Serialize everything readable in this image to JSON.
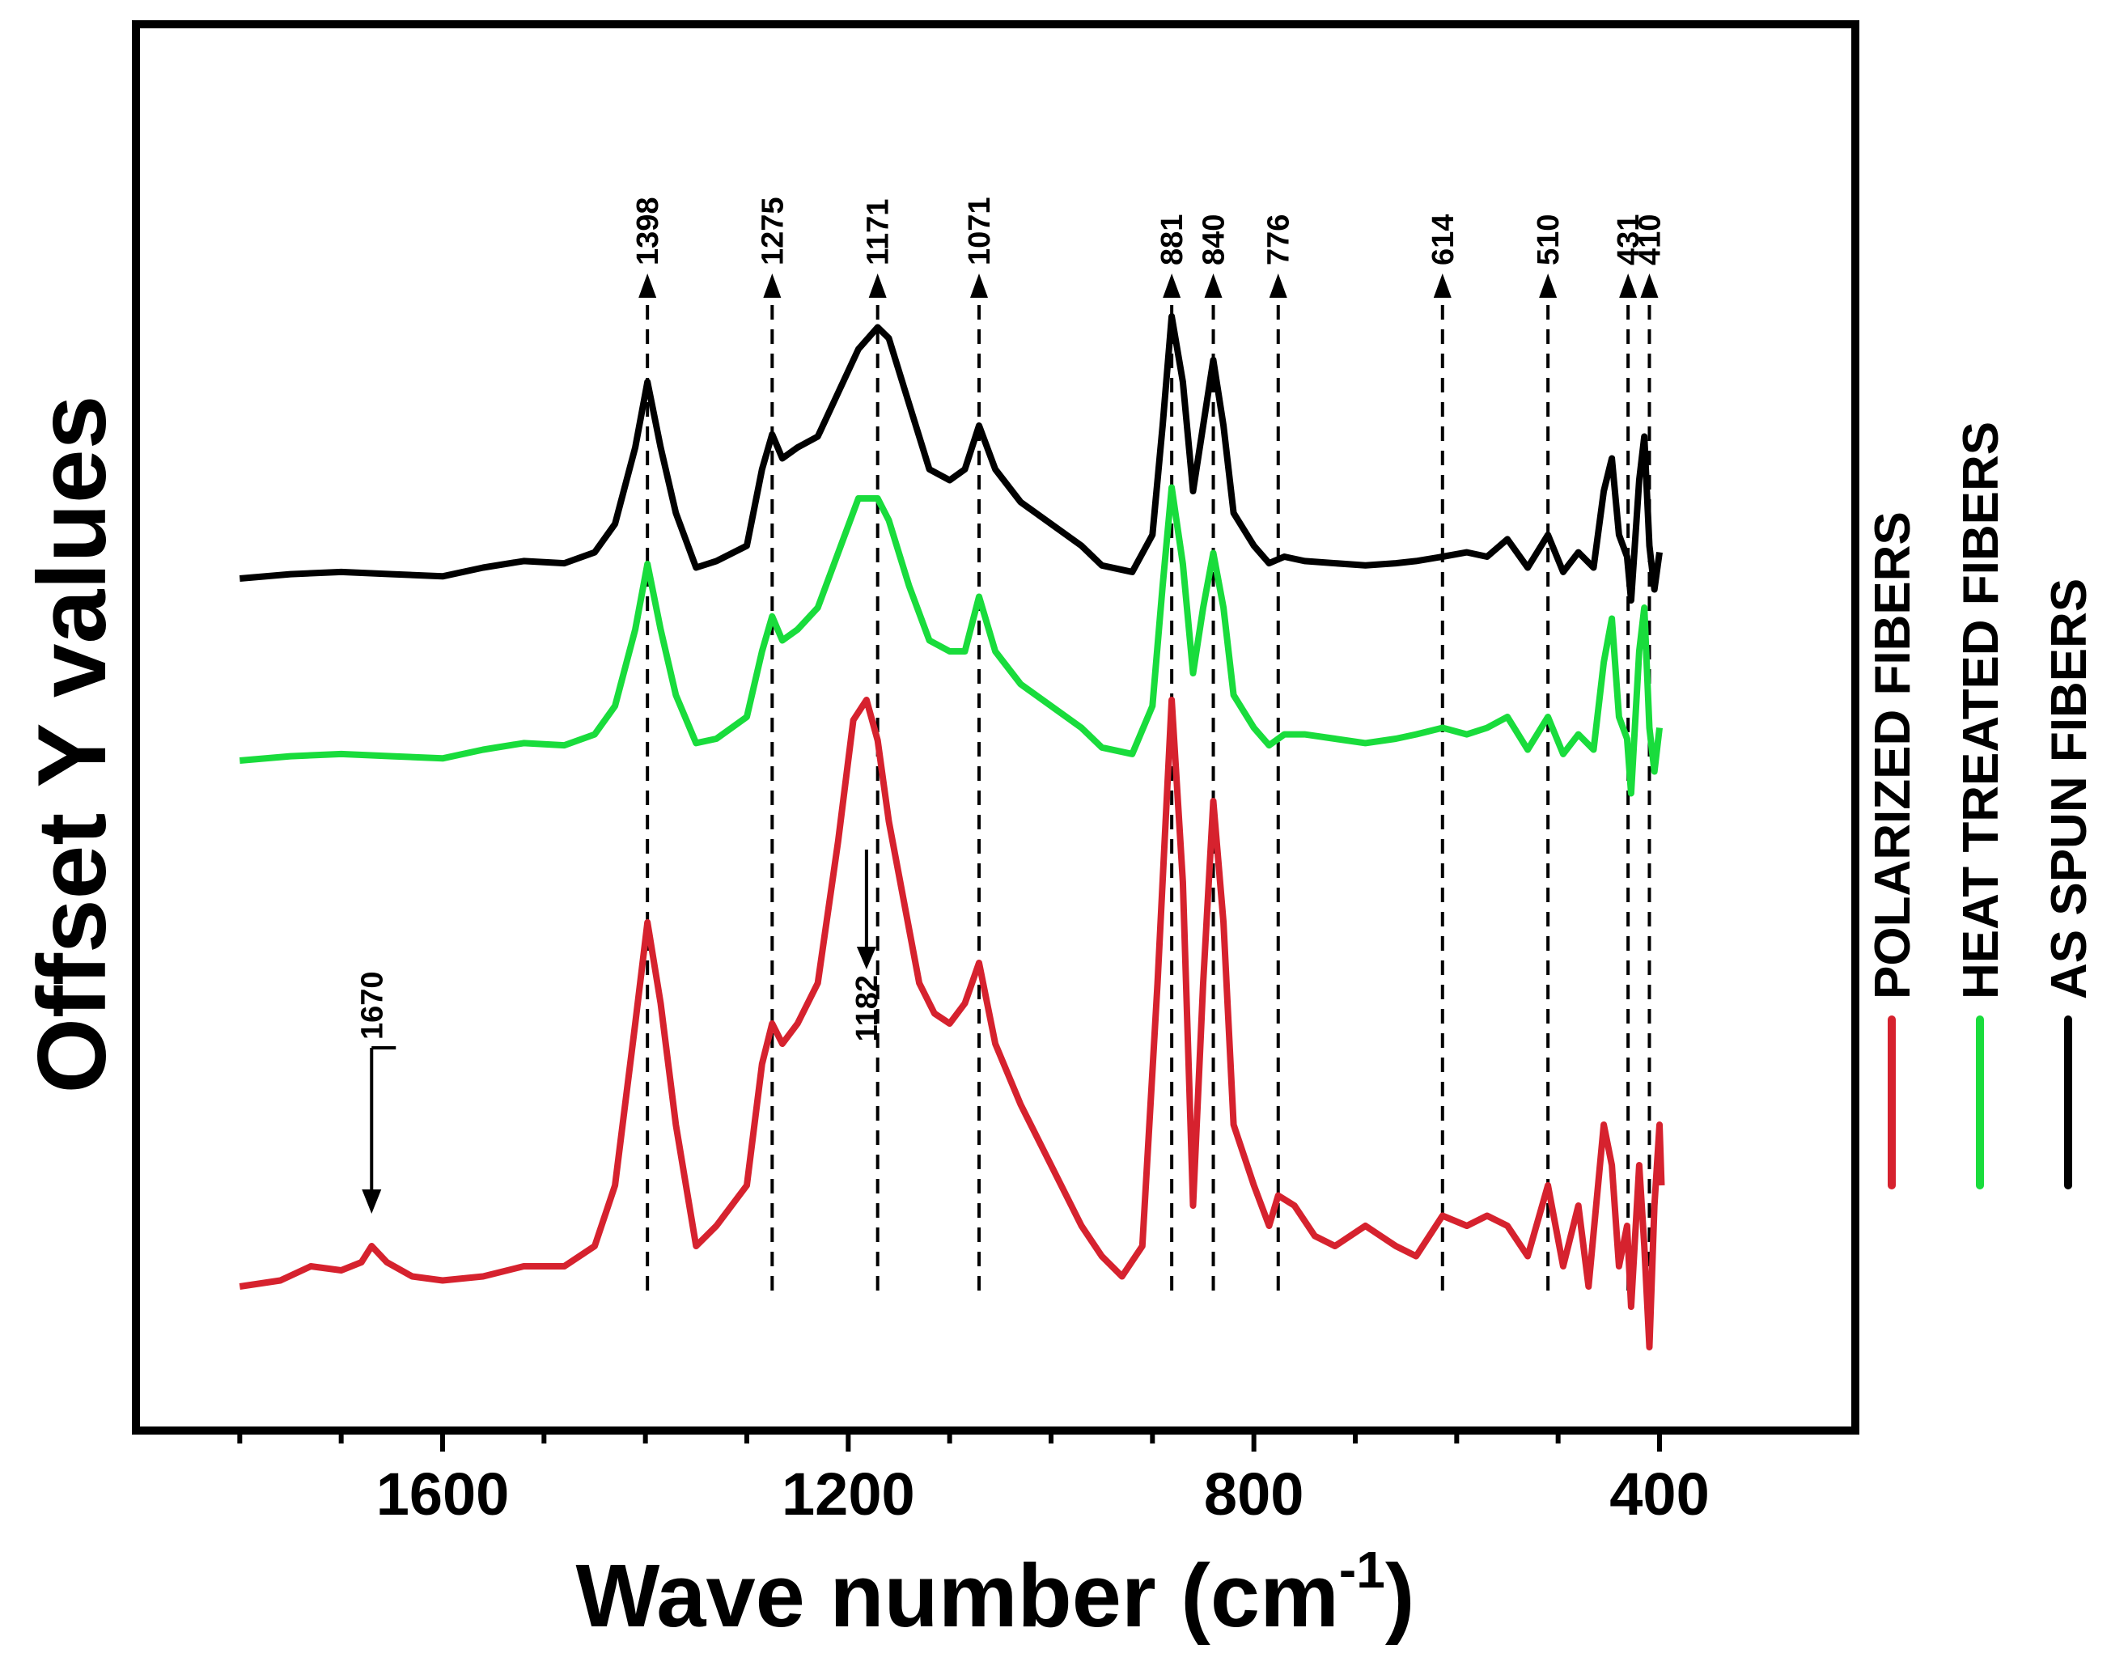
{
  "chart_data": {
    "type": "line",
    "xlabel": "Wave number (cm",
    "xlabel_sup": "-1",
    "xlabel_close": ")",
    "ylabel": "Offset Y values",
    "xlim": [
      1880,
      230
    ],
    "x_ticks": [
      1600,
      1200,
      800,
      400
    ],
    "x_tick_labels": [
      "1600",
      "1200",
      "800",
      "400"
    ],
    "legend": {
      "placement": "right",
      "entries": [
        {
          "label": "POLARIZED FIBERS",
          "color": "#d6222e"
        },
        {
          "label": "HEAT TREATED FIBERS",
          "color": "#19dc3c"
        },
        {
          "label": "AS SPUN FIBERS",
          "color": "#000000"
        }
      ]
    },
    "peak_markers": [
      {
        "label": "1398",
        "x": 1398
      },
      {
        "label": "1275",
        "x": 1275
      },
      {
        "label": "1171",
        "x": 1171
      },
      {
        "label": "1071",
        "x": 1071
      },
      {
        "label": "881",
        "x": 881
      },
      {
        "label": "840",
        "x": 840
      },
      {
        "label": "776",
        "x": 776
      },
      {
        "label": "614",
        "x": 614
      },
      {
        "label": "510",
        "x": 510
      },
      {
        "label": "431",
        "x": 431
      },
      {
        "label": "410",
        "x": 410
      }
    ],
    "annotations": [
      {
        "label": "1670",
        "x": 1670,
        "series": "POLARIZED FIBERS"
      },
      {
        "label": "1182",
        "x": 1182,
        "series": "POLARIZED FIBERS"
      }
    ],
    "series": [
      {
        "name": "AS SPUN FIBERS",
        "color": "#000000",
        "offset": 0.0,
        "points": [
          [
            1800,
            0.0
          ],
          [
            1750,
            0.02
          ],
          [
            1700,
            0.03
          ],
          [
            1650,
            0.02
          ],
          [
            1600,
            0.01
          ],
          [
            1560,
            0.05
          ],
          [
            1520,
            0.08
          ],
          [
            1480,
            0.07
          ],
          [
            1450,
            0.12
          ],
          [
            1430,
            0.25
          ],
          [
            1410,
            0.6
          ],
          [
            1398,
            0.9
          ],
          [
            1385,
            0.6
          ],
          [
            1370,
            0.3
          ],
          [
            1350,
            0.05
          ],
          [
            1330,
            0.08
          ],
          [
            1300,
            0.15
          ],
          [
            1285,
            0.5
          ],
          [
            1275,
            0.66
          ],
          [
            1265,
            0.55
          ],
          [
            1250,
            0.6
          ],
          [
            1230,
            0.65
          ],
          [
            1210,
            0.85
          ],
          [
            1190,
            1.05
          ],
          [
            1171,
            1.15
          ],
          [
            1160,
            1.1
          ],
          [
            1140,
            0.8
          ],
          [
            1120,
            0.5
          ],
          [
            1100,
            0.45
          ],
          [
            1085,
            0.5
          ],
          [
            1071,
            0.7
          ],
          [
            1055,
            0.5
          ],
          [
            1030,
            0.35
          ],
          [
            1000,
            0.25
          ],
          [
            970,
            0.15
          ],
          [
            950,
            0.06
          ],
          [
            920,
            0.03
          ],
          [
            900,
            0.2
          ],
          [
            890,
            0.7
          ],
          [
            881,
            1.2
          ],
          [
            870,
            0.9
          ],
          [
            860,
            0.4
          ],
          [
            850,
            0.7
          ],
          [
            840,
            1.0
          ],
          [
            830,
            0.7
          ],
          [
            820,
            0.3
          ],
          [
            800,
            0.15
          ],
          [
            785,
            0.07
          ],
          [
            770,
            0.1
          ],
          [
            750,
            0.08
          ],
          [
            720,
            0.07
          ],
          [
            690,
            0.06
          ],
          [
            660,
            0.07
          ],
          [
            640,
            0.08
          ],
          [
            614,
            0.1
          ],
          [
            590,
            0.12
          ],
          [
            570,
            0.1
          ],
          [
            550,
            0.18
          ],
          [
            530,
            0.05
          ],
          [
            510,
            0.2
          ],
          [
            495,
            0.03
          ],
          [
            480,
            0.12
          ],
          [
            465,
            0.05
          ],
          [
            455,
            0.4
          ],
          [
            447,
            0.55
          ],
          [
            440,
            0.2
          ],
          [
            432,
            0.1
          ],
          [
            428,
            -0.1
          ],
          [
            420,
            0.45
          ],
          [
            415,
            0.65
          ],
          [
            410,
            0.15
          ],
          [
            405,
            -0.05
          ],
          [
            400,
            0.12
          ]
        ]
      },
      {
        "name": "HEAT TREATED FIBERS",
        "color": "#19dc3c",
        "offset": 0.0,
        "points": [
          [
            1800,
            0.0
          ],
          [
            1750,
            0.02
          ],
          [
            1700,
            0.03
          ],
          [
            1650,
            0.02
          ],
          [
            1600,
            0.01
          ],
          [
            1560,
            0.05
          ],
          [
            1520,
            0.08
          ],
          [
            1480,
            0.07
          ],
          [
            1450,
            0.12
          ],
          [
            1430,
            0.25
          ],
          [
            1410,
            0.6
          ],
          [
            1398,
            0.9
          ],
          [
            1385,
            0.6
          ],
          [
            1370,
            0.3
          ],
          [
            1350,
            0.08
          ],
          [
            1330,
            0.1
          ],
          [
            1300,
            0.2
          ],
          [
            1285,
            0.5
          ],
          [
            1275,
            0.66
          ],
          [
            1265,
            0.55
          ],
          [
            1250,
            0.6
          ],
          [
            1230,
            0.7
          ],
          [
            1210,
            0.95
          ],
          [
            1190,
            1.2
          ],
          [
            1171,
            1.2
          ],
          [
            1160,
            1.1
          ],
          [
            1140,
            0.8
          ],
          [
            1120,
            0.55
          ],
          [
            1100,
            0.5
          ],
          [
            1085,
            0.5
          ],
          [
            1071,
            0.75
          ],
          [
            1055,
            0.5
          ],
          [
            1030,
            0.35
          ],
          [
            1000,
            0.25
          ],
          [
            970,
            0.15
          ],
          [
            950,
            0.06
          ],
          [
            920,
            0.03
          ],
          [
            900,
            0.25
          ],
          [
            890,
            0.8
          ],
          [
            881,
            1.25
          ],
          [
            870,
            0.9
          ],
          [
            860,
            0.4
          ],
          [
            850,
            0.7
          ],
          [
            840,
            0.95
          ],
          [
            830,
            0.7
          ],
          [
            820,
            0.3
          ],
          [
            800,
            0.15
          ],
          [
            785,
            0.07
          ],
          [
            770,
            0.12
          ],
          [
            750,
            0.12
          ],
          [
            720,
            0.1
          ],
          [
            690,
            0.08
          ],
          [
            660,
            0.1
          ],
          [
            640,
            0.12
          ],
          [
            614,
            0.15
          ],
          [
            590,
            0.12
          ],
          [
            570,
            0.15
          ],
          [
            550,
            0.2
          ],
          [
            530,
            0.05
          ],
          [
            510,
            0.2
          ],
          [
            495,
            0.03
          ],
          [
            480,
            0.12
          ],
          [
            465,
            0.05
          ],
          [
            455,
            0.45
          ],
          [
            447,
            0.65
          ],
          [
            440,
            0.2
          ],
          [
            432,
            0.1
          ],
          [
            428,
            -0.15
          ],
          [
            420,
            0.5
          ],
          [
            415,
            0.7
          ],
          [
            410,
            0.15
          ],
          [
            405,
            -0.05
          ],
          [
            400,
            0.15
          ]
        ]
      },
      {
        "name": "POLARIZED FIBERS",
        "color": "#d6222e",
        "offset": 0.0,
        "points": [
          [
            1800,
            0.0
          ],
          [
            1760,
            0.03
          ],
          [
            1730,
            0.1
          ],
          [
            1700,
            0.08
          ],
          [
            1680,
            0.12
          ],
          [
            1670,
            0.2
          ],
          [
            1655,
            0.12
          ],
          [
            1630,
            0.05
          ],
          [
            1600,
            0.03
          ],
          [
            1560,
            0.05
          ],
          [
            1520,
            0.1
          ],
          [
            1480,
            0.1
          ],
          [
            1450,
            0.2
          ],
          [
            1430,
            0.5
          ],
          [
            1410,
            1.3
          ],
          [
            1398,
            1.8
          ],
          [
            1385,
            1.4
          ],
          [
            1370,
            0.8
          ],
          [
            1350,
            0.2
          ],
          [
            1330,
            0.3
          ],
          [
            1300,
            0.5
          ],
          [
            1285,
            1.1
          ],
          [
            1275,
            1.3
          ],
          [
            1265,
            1.2
          ],
          [
            1250,
            1.3
          ],
          [
            1230,
            1.5
          ],
          [
            1210,
            2.2
          ],
          [
            1195,
            2.8
          ],
          [
            1182,
            2.9
          ],
          [
            1171,
            2.7
          ],
          [
            1160,
            2.3
          ],
          [
            1145,
            1.9
          ],
          [
            1130,
            1.5
          ],
          [
            1115,
            1.35
          ],
          [
            1100,
            1.3
          ],
          [
            1085,
            1.4
          ],
          [
            1071,
            1.6
          ],
          [
            1055,
            1.2
          ],
          [
            1030,
            0.9
          ],
          [
            1000,
            0.6
          ],
          [
            970,
            0.3
          ],
          [
            950,
            0.15
          ],
          [
            930,
            0.05
          ],
          [
            910,
            0.2
          ],
          [
            895,
            1.5
          ],
          [
            881,
            2.9
          ],
          [
            870,
            2.0
          ],
          [
            860,
            0.4
          ],
          [
            850,
            1.5
          ],
          [
            840,
            2.4
          ],
          [
            830,
            1.8
          ],
          [
            820,
            0.8
          ],
          [
            800,
            0.5
          ],
          [
            785,
            0.3
          ],
          [
            776,
            0.45
          ],
          [
            760,
            0.4
          ],
          [
            740,
            0.25
          ],
          [
            720,
            0.2
          ],
          [
            690,
            0.3
          ],
          [
            660,
            0.2
          ],
          [
            640,
            0.15
          ],
          [
            614,
            0.35
          ],
          [
            590,
            0.3
          ],
          [
            570,
            0.35
          ],
          [
            550,
            0.3
          ],
          [
            530,
            0.15
          ],
          [
            510,
            0.5
          ],
          [
            495,
            0.1
          ],
          [
            480,
            0.4
          ],
          [
            470,
            0.0
          ],
          [
            455,
            0.8
          ],
          [
            447,
            0.6
          ],
          [
            440,
            0.1
          ],
          [
            432,
            0.3
          ],
          [
            428,
            -0.1
          ],
          [
            420,
            0.6
          ],
          [
            415,
            0.2
          ],
          [
            410,
            -0.3
          ],
          [
            405,
            0.4
          ],
          [
            400,
            0.8
          ],
          [
            398,
            0.5
          ]
        ]
      }
    ]
  }
}
